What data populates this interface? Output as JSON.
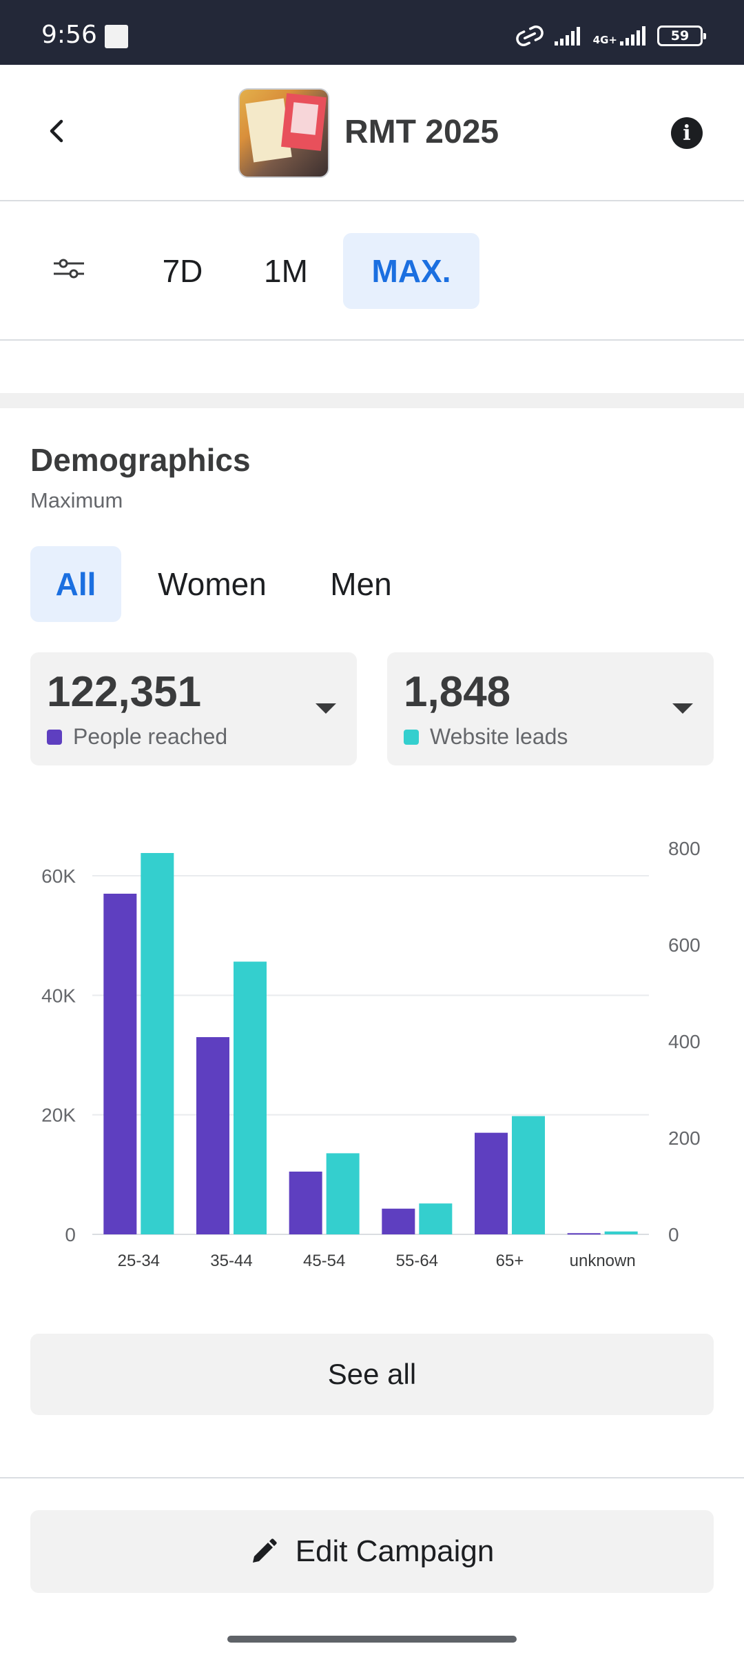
{
  "status_bar": {
    "time": "9:56",
    "network_label": "4G+",
    "battery": "59",
    "icons": [
      "link-icon",
      "signal-icon",
      "signal-4g-icon",
      "battery-icon"
    ]
  },
  "header": {
    "title": "RMT 2025",
    "back_icon": "chevron-left-icon",
    "info_icon": "info-icon",
    "info_glyph": "i"
  },
  "date_range": {
    "filter_icon": "sliders-icon",
    "tabs": [
      {
        "label": "7D",
        "selected": false
      },
      {
        "label": "1M",
        "selected": false
      },
      {
        "label": "MAX.",
        "selected": true
      }
    ]
  },
  "demographics": {
    "title": "Demographics",
    "subtitle": "Maximum",
    "gender_tabs": [
      {
        "label": "All",
        "selected": true
      },
      {
        "label": "Women",
        "selected": false
      },
      {
        "label": "Men",
        "selected": false
      }
    ],
    "metrics": [
      {
        "value": "122,351",
        "label": "People reached",
        "color": "#5e3fc0"
      },
      {
        "value": "1,848",
        "label": "Website leads",
        "color": "#34cfce"
      }
    ]
  },
  "colors": {
    "accent": "#1b6fe0",
    "accent_bg": "#e7f0fd",
    "reach": "#5e3fc0",
    "leads": "#34cfce"
  },
  "chart_data": {
    "type": "bar",
    "categories": [
      "25-34",
      "35-44",
      "45-54",
      "55-64",
      "65+",
      "unknown"
    ],
    "series": [
      {
        "name": "People reached",
        "axis": "left",
        "color": "#5e3fc0",
        "values": [
          57000,
          33000,
          10500,
          4300,
          17000,
          200
        ]
      },
      {
        "name": "Website leads",
        "axis": "right",
        "color": "#34cfce",
        "values": [
          790,
          565,
          168,
          64,
          245,
          6
        ]
      }
    ],
    "y_left": {
      "min": 0,
      "max": 60000,
      "ticks": [
        "0",
        "20K",
        "40K",
        "60K"
      ],
      "tick_values": [
        0,
        20000,
        40000,
        60000
      ]
    },
    "y_right": {
      "min": 0,
      "max": 800,
      "ticks": [
        "0",
        "200",
        "400",
        "600",
        "800"
      ],
      "tick_values": [
        0,
        200,
        400,
        600,
        800
      ]
    },
    "grid": true,
    "legend": "none"
  },
  "actions": {
    "see_all": "See all",
    "edit_campaign": "Edit Campaign",
    "edit_icon": "pencil-icon"
  }
}
